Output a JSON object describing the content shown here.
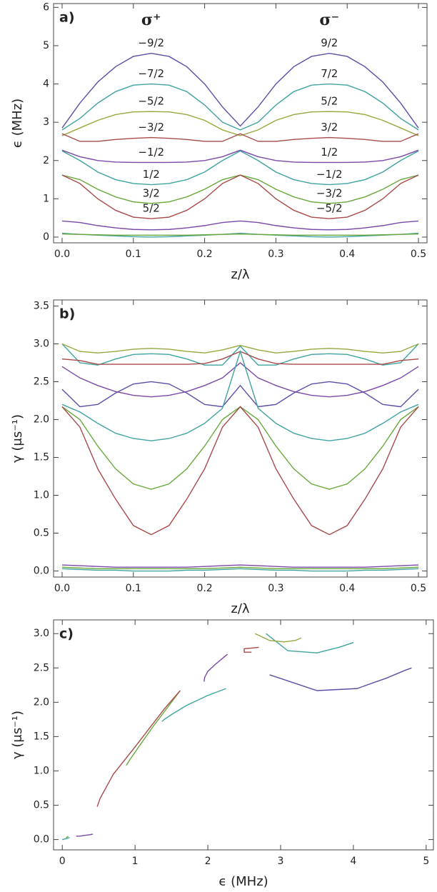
{
  "chart_data": [
    {
      "type": "line",
      "panel_label": "a)",
      "ylabel": "ϵ (MHz)",
      "xlabel": "z/λ",
      "annotations": [
        "σ⁺",
        "σ⁻"
      ],
      "xlim": [
        -0.012,
        0.512
      ],
      "ylim": [
        -0.15,
        6.1
      ],
      "xticks": [
        {
          "value": 0,
          "label": "0.0"
        },
        0.1,
        0.2,
        0.3,
        0.4,
        0.5
      ],
      "yticks": [
        0,
        1,
        2,
        3,
        4,
        5,
        6
      ],
      "x": [
        0,
        0.025,
        0.05,
        0.075,
        0.1,
        0.125,
        0.15,
        0.175,
        0.2,
        0.225,
        0.25,
        0.275,
        0.3,
        0.325,
        0.35,
        0.375,
        0.4,
        0.425,
        0.45,
        0.475,
        0.5
      ],
      "series": [
        {
          "color": "#5b4fa8",
          "labels": [
            "−9/2",
            "9/2"
          ],
          "values": [
            2.85,
            3.5,
            4.05,
            4.45,
            4.72,
            4.8,
            4.72,
            4.45,
            4.0,
            3.4,
            2.9,
            3.4,
            4.0,
            4.45,
            4.72,
            4.8,
            4.72,
            4.45,
            4.05,
            3.5,
            2.85
          ]
        },
        {
          "color": "#3fa3a0",
          "labels": [
            "−7/2",
            "7/2"
          ],
          "values": [
            2.8,
            3.1,
            3.5,
            3.8,
            3.97,
            4.0,
            3.97,
            3.8,
            3.45,
            3.0,
            2.8,
            3.0,
            3.45,
            3.8,
            3.97,
            4.0,
            3.97,
            3.8,
            3.5,
            3.1,
            2.8
          ]
        },
        {
          "color": "#9aa63c",
          "labels": [
            "−5/2",
            "5/2"
          ],
          "values": [
            2.65,
            2.85,
            3.05,
            3.2,
            3.27,
            3.28,
            3.27,
            3.2,
            3.05,
            2.8,
            2.65,
            2.8,
            3.05,
            3.2,
            3.27,
            3.28,
            3.27,
            3.2,
            3.05,
            2.85,
            2.65
          ]
        },
        {
          "color": "#a84a4a",
          "labels": [
            "−3/2",
            "3/2"
          ],
          "values": [
            2.7,
            2.5,
            2.5,
            2.55,
            2.58,
            2.6,
            2.58,
            2.55,
            2.5,
            2.5,
            2.7,
            2.5,
            2.5,
            2.55,
            2.58,
            2.6,
            2.58,
            2.55,
            2.5,
            2.5,
            2.7
          ]
        },
        {
          "color": "#7a48a8",
          "labels": [
            "−1/2",
            "1/2"
          ],
          "values": [
            2.27,
            2.1,
            2.0,
            1.96,
            1.95,
            1.95,
            1.95,
            1.96,
            2.0,
            2.1,
            2.27,
            2.1,
            2.0,
            1.96,
            1.95,
            1.95,
            1.95,
            1.96,
            2.0,
            2.1,
            2.27
          ]
        },
        {
          "color": "#3fa3a0",
          "labels": [
            "1/2",
            "−1/2"
          ],
          "values": [
            2.25,
            2.0,
            1.7,
            1.5,
            1.4,
            1.37,
            1.4,
            1.5,
            1.7,
            2.0,
            2.25,
            2.0,
            1.7,
            1.5,
            1.4,
            1.37,
            1.4,
            1.5,
            1.7,
            2.0,
            2.25
          ]
        },
        {
          "color": "#6aa83c",
          "labels": [
            "3/2",
            "−3/2"
          ],
          "values": [
            1.62,
            1.5,
            1.25,
            1.05,
            0.92,
            0.88,
            0.92,
            1.05,
            1.25,
            1.5,
            1.62,
            1.5,
            1.25,
            1.05,
            0.92,
            0.88,
            0.92,
            1.05,
            1.25,
            1.5,
            1.62
          ]
        },
        {
          "color": "#a84a4a",
          "labels": [
            "5/2",
            "−5/2"
          ],
          "values": [
            1.62,
            1.4,
            1.0,
            0.7,
            0.52,
            0.48,
            0.52,
            0.7,
            1.0,
            1.4,
            1.62,
            1.4,
            1.0,
            0.7,
            0.52,
            0.48,
            0.52,
            0.7,
            1.0,
            1.4,
            1.62
          ]
        },
        {
          "color": "#7a48a8",
          "values": [
            0.42,
            0.38,
            0.3,
            0.24,
            0.2,
            0.19,
            0.2,
            0.24,
            0.3,
            0.38,
            0.42,
            0.38,
            0.3,
            0.24,
            0.2,
            0.19,
            0.2,
            0.24,
            0.3,
            0.38,
            0.42
          ]
        },
        {
          "color": "#3fa3a0",
          "values": [
            0.1,
            0.07,
            0.05,
            0.03,
            0.01,
            0,
            0.01,
            0.03,
            0.05,
            0.07,
            0.1,
            0.07,
            0.05,
            0.03,
            0.01,
            0,
            0.01,
            0.03,
            0.05,
            0.07,
            0.1
          ]
        },
        {
          "color": "#6aa83c",
          "values": [
            0.08,
            0.07,
            0.06,
            0.05,
            0.05,
            0.05,
            0.05,
            0.05,
            0.06,
            0.07,
            0.08,
            0.07,
            0.06,
            0.05,
            0.05,
            0.05,
            0.05,
            0.05,
            0.06,
            0.07,
            0.08
          ]
        }
      ]
    },
    {
      "type": "line",
      "panel_label": "b)",
      "ylabel": "γ (μs⁻¹)",
      "xlabel": "z/λ",
      "xlim": [
        -0.012,
        0.512
      ],
      "ylim": [
        -0.08,
        3.58
      ],
      "xticks": [
        {
          "value": 0,
          "label": "0.0"
        },
        0.1,
        0.2,
        0.3,
        0.4,
        0.5
      ],
      "yticks": [
        {
          "value": 0,
          "label": "0.0"
        },
        0.5,
        {
          "value": 1,
          "label": "1.0"
        },
        1.5,
        {
          "value": 2,
          "label": "2.0"
        },
        2.5,
        {
          "value": 3,
          "label": "3.0"
        },
        3.5
      ],
      "x": [
        0,
        0.025,
        0.05,
        0.075,
        0.1,
        0.125,
        0.15,
        0.175,
        0.2,
        0.225,
        0.25,
        0.275,
        0.3,
        0.325,
        0.35,
        0.375,
        0.4,
        0.425,
        0.45,
        0.475,
        0.5
      ],
      "series": [
        {
          "color": "#5b4fa8",
          "values": [
            2.4,
            2.17,
            2.2,
            2.35,
            2.47,
            2.5,
            2.47,
            2.35,
            2.2,
            2.17,
            2.45,
            2.17,
            2.2,
            2.35,
            2.47,
            2.5,
            2.47,
            2.35,
            2.2,
            2.17,
            2.4
          ]
        },
        {
          "color": "#3fa3a0",
          "values": [
            3.0,
            2.75,
            2.72,
            2.8,
            2.86,
            2.87,
            2.86,
            2.8,
            2.72,
            2.72,
            2.97,
            2.72,
            2.72,
            2.8,
            2.86,
            2.87,
            2.86,
            2.8,
            2.72,
            2.75,
            3.0
          ]
        },
        {
          "color": "#9aa63c",
          "values": [
            3.0,
            2.9,
            2.88,
            2.9,
            2.93,
            2.94,
            2.93,
            2.9,
            2.88,
            2.92,
            2.98,
            2.92,
            2.88,
            2.9,
            2.93,
            2.94,
            2.93,
            2.9,
            2.88,
            2.9,
            3.0
          ]
        },
        {
          "color": "#a84a4a",
          "values": [
            2.8,
            2.78,
            2.73,
            2.73,
            2.73,
            2.73,
            2.73,
            2.73,
            2.74,
            2.8,
            2.9,
            2.8,
            2.74,
            2.73,
            2.73,
            2.73,
            2.73,
            2.73,
            2.73,
            2.78,
            2.8
          ]
        },
        {
          "color": "#7a48a8",
          "values": [
            2.7,
            2.55,
            2.45,
            2.37,
            2.32,
            2.3,
            2.32,
            2.37,
            2.45,
            2.55,
            2.75,
            2.55,
            2.45,
            2.37,
            2.32,
            2.3,
            2.32,
            2.37,
            2.45,
            2.55,
            2.7
          ]
        },
        {
          "color": "#3fa3a0",
          "values": [
            2.2,
            2.1,
            1.95,
            1.82,
            1.75,
            1.72,
            1.75,
            1.82,
            1.95,
            2.15,
            2.9,
            2.15,
            1.95,
            1.82,
            1.75,
            1.72,
            1.75,
            1.82,
            1.95,
            2.1,
            2.2
          ]
        },
        {
          "color": "#6aa83c",
          "values": [
            2.17,
            2.0,
            1.65,
            1.35,
            1.15,
            1.08,
            1.15,
            1.35,
            1.65,
            2.0,
            2.17,
            2.0,
            1.65,
            1.35,
            1.15,
            1.08,
            1.15,
            1.35,
            1.65,
            2.0,
            2.17
          ]
        },
        {
          "color": "#a84a4a",
          "values": [
            2.17,
            1.9,
            1.35,
            0.95,
            0.6,
            0.48,
            0.6,
            0.95,
            1.35,
            1.9,
            2.17,
            1.9,
            1.35,
            0.95,
            0.6,
            0.48,
            0.6,
            0.95,
            1.35,
            1.9,
            2.17
          ]
        },
        {
          "color": "#7a48a8",
          "values": [
            0.08,
            0.07,
            0.06,
            0.05,
            0.05,
            0.05,
            0.05,
            0.05,
            0.06,
            0.07,
            0.08,
            0.07,
            0.06,
            0.05,
            0.05,
            0.05,
            0.05,
            0.05,
            0.06,
            0.07,
            0.08
          ]
        },
        {
          "color": "#3fa3a0",
          "values": [
            0.03,
            0.02,
            0.01,
            0.01,
            0,
            0,
            0,
            0.01,
            0.01,
            0.02,
            0.03,
            0.02,
            0.01,
            0.01,
            0,
            0,
            0,
            0.01,
            0.01,
            0.02,
            0.03
          ]
        },
        {
          "color": "#6aa83c",
          "values": [
            0.05,
            0.04,
            0.03,
            0.03,
            0.03,
            0.03,
            0.03,
            0.03,
            0.03,
            0.04,
            0.05,
            0.04,
            0.03,
            0.03,
            0.03,
            0.03,
            0.03,
            0.03,
            0.03,
            0.04,
            0.05
          ]
        }
      ]
    },
    {
      "type": "line",
      "panel_label": "c)",
      "ylabel": "γ (μs⁻¹)",
      "xlabel": "ϵ (MHz)",
      "xlim": [
        -0.12,
        5.1
      ],
      "ylim": [
        -0.15,
        3.2
      ],
      "xticks": [
        0,
        1,
        2,
        3,
        4,
        5
      ],
      "yticks": [
        {
          "value": 0,
          "label": "0.0"
        },
        0.5,
        {
          "value": 1,
          "label": "1.0"
        },
        1.5,
        {
          "value": 2,
          "label": "2.0"
        },
        2.5,
        {
          "value": 3,
          "label": "3.0"
        }
      ],
      "series": [
        {
          "color": "#5b4fa8",
          "x": [
            2.85,
            3.5,
            4.05,
            4.45,
            4.72,
            4.8
          ],
          "values": [
            2.4,
            2.17,
            2.2,
            2.35,
            2.47,
            2.5
          ]
        },
        {
          "color": "#3fa3a0",
          "x": [
            2.8,
            3.1,
            3.5,
            3.8,
            3.97,
            4.0
          ],
          "values": [
            3.0,
            2.75,
            2.72,
            2.8,
            2.86,
            2.87
          ]
        },
        {
          "color": "#9aa63c",
          "x": [
            2.65,
            2.85,
            3.05,
            3.2,
            3.27,
            3.28
          ],
          "values": [
            3.0,
            2.9,
            2.88,
            2.9,
            2.93,
            2.94
          ]
        },
        {
          "color": "#a84a4a",
          "x": [
            2.7,
            2.5,
            2.5,
            2.55,
            2.58,
            2.6
          ],
          "values": [
            2.8,
            2.78,
            2.73,
            2.73,
            2.73,
            2.73
          ]
        },
        {
          "color": "#7a48a8",
          "x": [
            2.27,
            2.1,
            2.0,
            1.96,
            1.95,
            1.95
          ],
          "values": [
            2.7,
            2.55,
            2.45,
            2.37,
            2.32,
            2.3
          ]
        },
        {
          "color": "#3fa3a0",
          "x": [
            2.25,
            2.0,
            1.7,
            1.5,
            1.4,
            1.37
          ],
          "values": [
            2.2,
            2.1,
            1.95,
            1.82,
            1.75,
            1.72
          ]
        },
        {
          "color": "#6aa83c",
          "x": [
            1.62,
            1.5,
            1.25,
            1.05,
            0.92,
            0.88
          ],
          "values": [
            2.17,
            2.0,
            1.65,
            1.35,
            1.15,
            1.08
          ]
        },
        {
          "color": "#a84a4a",
          "x": [
            1.62,
            1.4,
            1.0,
            0.7,
            0.52,
            0.48
          ],
          "values": [
            2.17,
            1.9,
            1.35,
            0.95,
            0.6,
            0.48
          ]
        },
        {
          "color": "#7a48a8",
          "x": [
            0.42,
            0.38,
            0.3,
            0.24,
            0.2,
            0.19
          ],
          "values": [
            0.08,
            0.07,
            0.06,
            0.05,
            0.05,
            0.05
          ]
        },
        {
          "color": "#3fa3a0",
          "x": [
            0.1,
            0.07,
            0.05,
            0.03,
            0.01,
            0
          ],
          "values": [
            0.03,
            0.02,
            0.01,
            0.01,
            0,
            0
          ]
        },
        {
          "color": "#6aa83c",
          "x": [
            0.08,
            0.07,
            0.06,
            0.05,
            0.05,
            0.05
          ],
          "values": [
            0.05,
            0.04,
            0.03,
            0.03,
            0.03,
            0.03
          ]
        }
      ]
    }
  ]
}
